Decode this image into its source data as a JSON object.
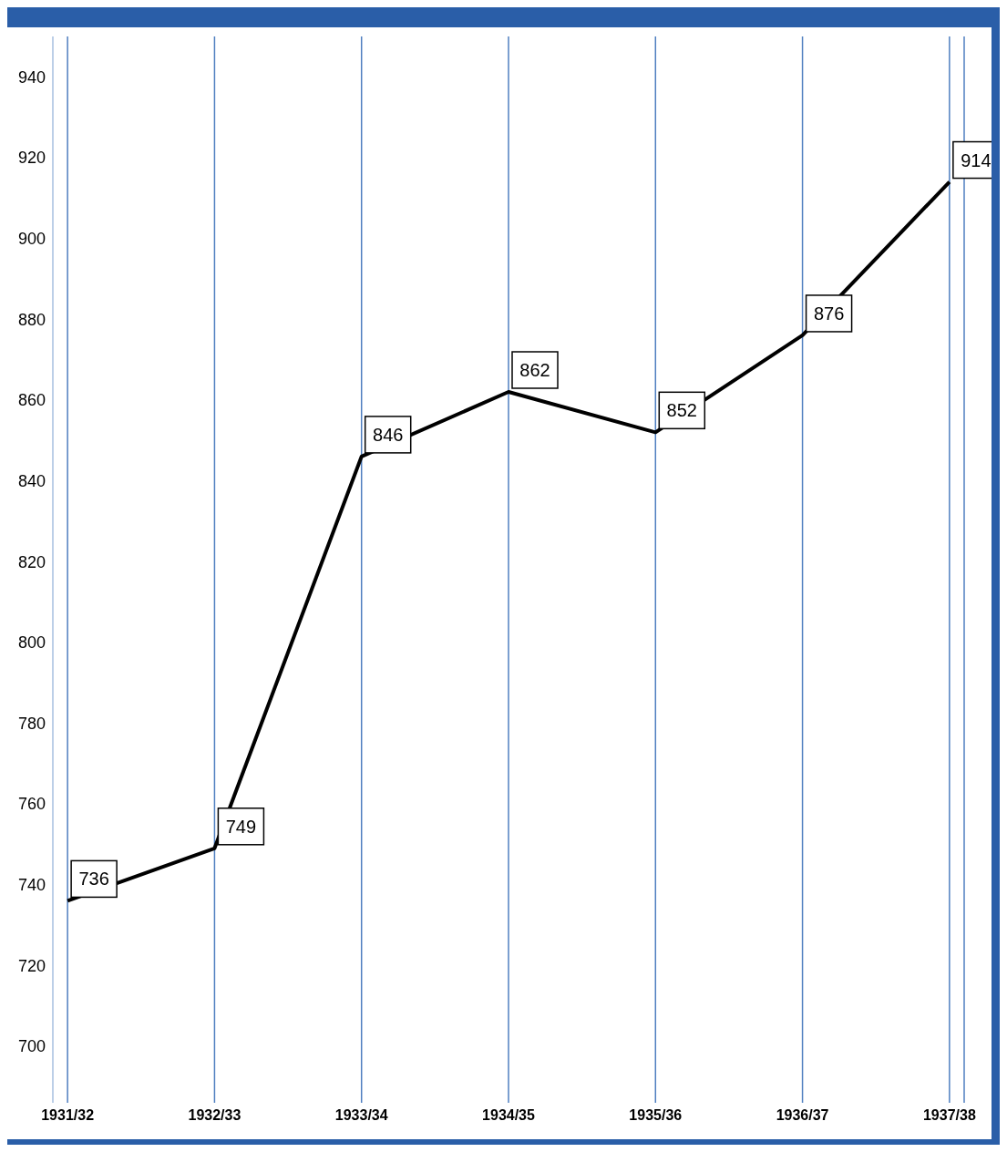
{
  "chart_data": {
    "type": "line",
    "categories": [
      "1931/32",
      "1932/33",
      "1933/34",
      "1934/35",
      "1935/36",
      "1936/37",
      "1937/38"
    ],
    "series": [
      {
        "color": "#000000",
        "values": [
          736,
          749,
          846,
          862,
          852,
          876,
          914
        ]
      }
    ],
    "ylim": [
      686,
      950
    ],
    "yticks": [
      700,
      720,
      740,
      760,
      780,
      800,
      820,
      840,
      860,
      880,
      900,
      920,
      940
    ],
    "grid": "x",
    "marker": "none",
    "line_style": "solid",
    "data_labels": true
  }
}
